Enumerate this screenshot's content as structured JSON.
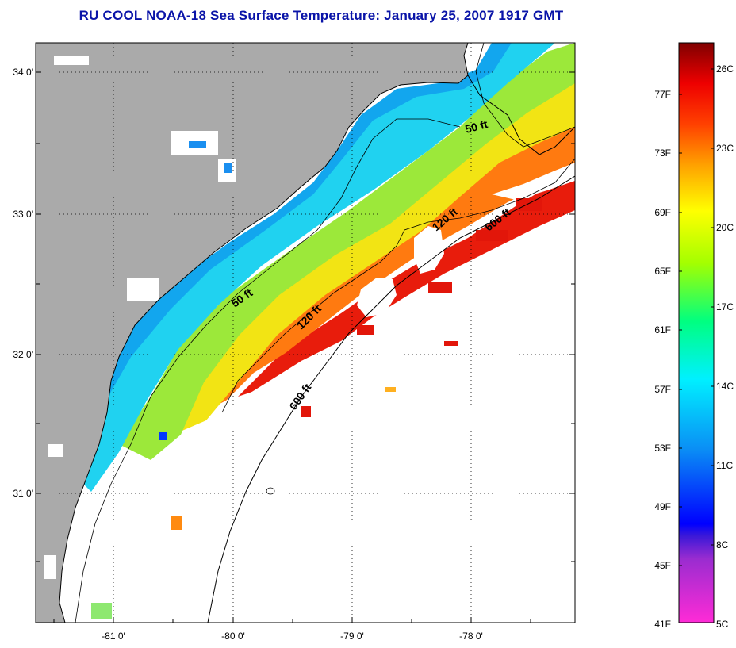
{
  "title": "RU COOL  NOAA-18  Sea Surface Temperature:  January 25, 2007 1917 GMT",
  "colors": {
    "title": "#0a14a8",
    "land": "#aaaaaa",
    "clouds": "#ffffff"
  },
  "map": {
    "lat_labels": [
      "34 0'",
      "33 0'",
      "32 0'",
      "31 0'"
    ],
    "lon_labels": [
      "-81 0'",
      "-80 0'",
      "-79 0'",
      "-78 0'"
    ],
    "contour_labels": [
      "50 ft",
      "120 ft",
      "600 ft",
      "50 ft",
      "120 ft",
      "600 ft"
    ]
  },
  "colorbar": {
    "fahrenheit_labels": [
      "77F",
      "73F",
      "69F",
      "65F",
      "61F",
      "57F",
      "53F",
      "49F",
      "45F",
      "41F"
    ],
    "celsius_labels": [
      "26C",
      "23C",
      "20C",
      "17C",
      "14C",
      "11C",
      "8C",
      "5C"
    ]
  }
}
